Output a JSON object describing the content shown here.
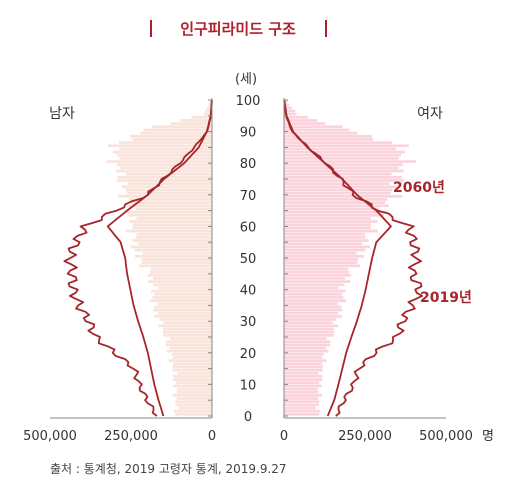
{
  "header": {
    "title": "인구피라미드 구조"
  },
  "labels": {
    "unit_top": "(세)",
    "male": "남자",
    "female": "여자",
    "people_unit": "명"
  },
  "annotations": {
    "line_2060": "2060년",
    "line_2019": "2019년"
  },
  "source": "출처 : 통계청, 2019 고령자 통계, 2019.9.27",
  "colors": {
    "male_bar": "#f9e3da",
    "female_bar": "#fbd3dc",
    "line": "#a6262b",
    "title": "#b0202a"
  },
  "chart_data": {
    "type": "bar",
    "orientation": "horizontal population pyramid",
    "y_axis": {
      "label": "(세)",
      "range": [
        0,
        100
      ],
      "ticks": [
        0,
        10,
        20,
        30,
        40,
        50,
        60,
        70,
        80,
        90,
        100
      ]
    },
    "x_axis": {
      "range": [
        0,
        500000
      ],
      "ticks_left": [
        "500,000",
        "250,000",
        "0"
      ],
      "ticks_right": [
        "0",
        "250,000",
        "500,000"
      ]
    },
    "ages": [
      0,
      5,
      10,
      15,
      20,
      25,
      30,
      35,
      40,
      45,
      50,
      55,
      60,
      65,
      70,
      75,
      80,
      85,
      90,
      95,
      100
    ],
    "series": [
      {
        "name": "2060년",
        "kind": "line",
        "side": "male",
        "values": [
          150000,
          165000,
          178000,
          188000,
          198000,
          212000,
          228000,
          242000,
          252000,
          262000,
          268000,
          282000,
          322000,
          262000,
          198000,
          148000,
          86000,
          41000,
          16000,
          4000,
          500
        ]
      },
      {
        "name": "2060년",
        "kind": "line",
        "side": "female",
        "values": [
          135000,
          155000,
          168000,
          180000,
          192000,
          208000,
          225000,
          240000,
          252000,
          262000,
          272000,
          285000,
          330000,
          285000,
          225000,
          180000,
          126000,
          72000,
          28000,
          8000,
          1000
        ]
      },
      {
        "name": "2019년",
        "kind": "line",
        "side": "male",
        "values": [
          170000,
          200000,
          225000,
          240000,
          300000,
          360000,
          380000,
          410000,
          430000,
          430000,
          440000,
          420000,
          390000,
          300000,
          200000,
          150000,
          100000,
          55000,
          15000,
          3000,
          0
        ]
      },
      {
        "name": "2019년",
        "kind": "line",
        "side": "female",
        "values": [
          160000,
          185000,
          215000,
          230000,
          280000,
          350000,
          365000,
          395000,
          420000,
          395000,
          410000,
          400000,
          385000,
          295000,
          215000,
          175000,
          130000,
          75000,
          25000,
          6000,
          500
        ]
      },
      {
        "name": "",
        "kind": "bar",
        "side": "male",
        "values": [
          110000,
          112000,
          115000,
          120000,
          132000,
          145000,
          165000,
          182000,
          180000,
          195000,
          230000,
          240000,
          250000,
          250000,
          270000,
          280000,
          300000,
          300000,
          210000,
          25000,
          1000
        ]
      },
      {
        "name": "",
        "kind": "bar",
        "side": "female",
        "values": [
          105000,
          108000,
          112000,
          118000,
          130000,
          148000,
          165000,
          180000,
          182000,
          205000,
          240000,
          255000,
          275000,
          310000,
          340000,
          350000,
          375000,
          360000,
          200000,
          40000,
          2000
        ]
      }
    ]
  }
}
